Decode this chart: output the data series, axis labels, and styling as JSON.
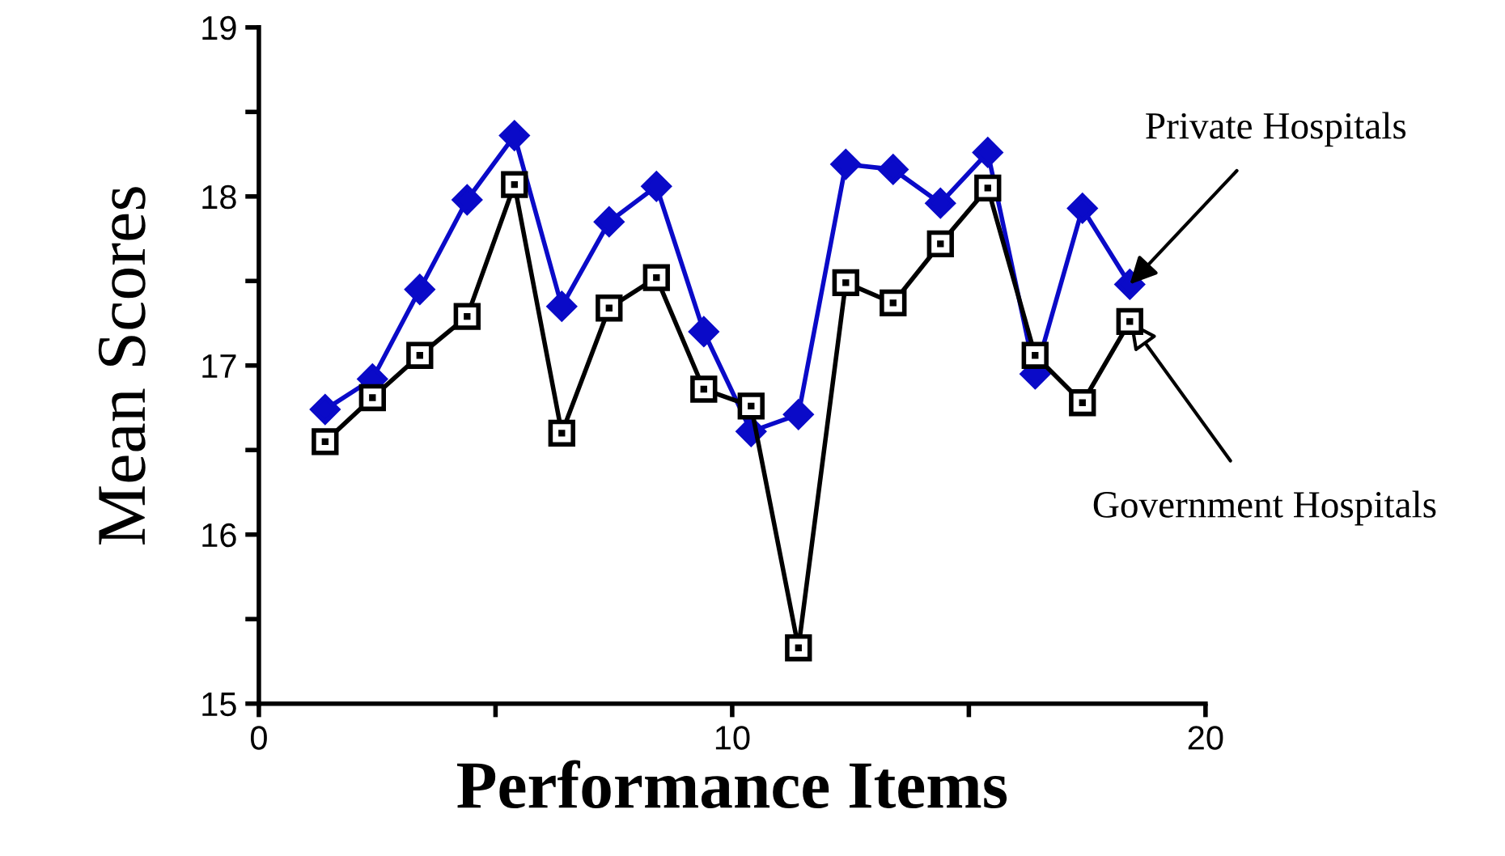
{
  "chart_data": {
    "type": "line",
    "xlabel": "Performance Items",
    "ylabel": "Mean Scores",
    "x": [
      1.4,
      2.4,
      3.4,
      4.4,
      5.4,
      6.4,
      7.4,
      8.4,
      9.4,
      10.4,
      11.4,
      12.4,
      13.4,
      14.4,
      15.4,
      16.4,
      17.4,
      18.4
    ],
    "series": [
      {
        "color": "#0a0ac8",
        "marker": "diamond",
        "values": [
          16.74,
          16.92,
          17.45,
          17.98,
          18.36,
          17.35,
          17.85,
          18.06,
          17.2,
          16.61,
          16.71,
          18.19,
          18.16,
          17.96,
          18.26,
          16.95,
          17.93,
          17.48
        ]
      },
      {
        "color": "#000000",
        "marker": "square",
        "values": [
          16.55,
          16.81,
          17.06,
          17.29,
          18.07,
          16.6,
          17.34,
          17.52,
          16.86,
          16.76,
          15.33,
          17.49,
          17.37,
          17.72,
          18.05,
          17.06,
          16.78,
          17.26
        ]
      }
    ],
    "annotations": [
      {
        "text": "Private Hospitals",
        "x": 18.4,
        "y": 17.48
      },
      {
        "text": "Government Hospitals",
        "x": 18.4,
        "y": 17.26
      }
    ],
    "xlim": [
      0,
      20
    ],
    "xticks": [
      0,
      {
        "value": 5,
        "label": null
      },
      10,
      {
        "value": 15,
        "label": null
      },
      20
    ],
    "ylim": [
      15,
      19
    ],
    "yticks": [
      15,
      {
        "value": 15.5,
        "label": null
      },
      16,
      {
        "value": 16.5,
        "label": null
      },
      17,
      {
        "value": 17.5,
        "label": null
      },
      18,
      {
        "value": 18.5,
        "label": null
      },
      19
    ],
    "grid": false,
    "legend": false,
    "line_style": "solid"
  }
}
